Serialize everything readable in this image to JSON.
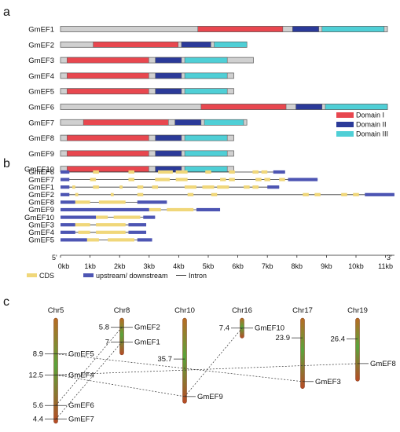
{
  "panels": {
    "a": "a",
    "b": "b",
    "c": "c"
  },
  "colors": {
    "domain_i": "#e8474f",
    "domain_ii": "#2b3a99",
    "domain_iii": "#4fcfd6",
    "protein_body": "#d0d0d0",
    "cds": "#f0d77a",
    "utr": "#4d55b3",
    "intron": "#333333"
  },
  "panel_a": {
    "legend": [
      "Domain I",
      "Domain II",
      "Domain III"
    ],
    "proteins": [
      {
        "name": "GmEF1",
        "length": 1.0,
        "domains": [
          [
            0.42,
            0.68,
            "I"
          ],
          [
            0.71,
            0.79,
            "II"
          ],
          [
            0.8,
            0.99,
            "III"
          ]
        ]
      },
      {
        "name": "GmEF2",
        "length": 0.57,
        "domains": [
          [
            0.1,
            0.36,
            "I"
          ],
          [
            0.37,
            0.46,
            "II"
          ],
          [
            0.47,
            0.57,
            "III"
          ]
        ]
      },
      {
        "name": "GmEF3",
        "length": 0.59,
        "domains": [
          [
            0.02,
            0.27,
            "I"
          ],
          [
            0.29,
            0.37,
            "II"
          ],
          [
            0.38,
            0.51,
            "III"
          ]
        ]
      },
      {
        "name": "GmEF4",
        "length": 0.53,
        "domains": [
          [
            0.02,
            0.27,
            "I"
          ],
          [
            0.29,
            0.37,
            "II"
          ],
          [
            0.38,
            0.51,
            "III"
          ]
        ]
      },
      {
        "name": "GmEF5",
        "length": 0.53,
        "domains": [
          [
            0.02,
            0.27,
            "I"
          ],
          [
            0.29,
            0.37,
            "II"
          ],
          [
            0.38,
            0.51,
            "III"
          ]
        ]
      },
      {
        "name": "GmEF6",
        "length": 1.0,
        "domains": [
          [
            0.43,
            0.69,
            "I"
          ],
          [
            0.72,
            0.8,
            "II"
          ],
          [
            0.81,
            1.0,
            "III"
          ]
        ]
      },
      {
        "name": "GmEF7",
        "length": 0.57,
        "domains": [
          [
            0.07,
            0.33,
            "I"
          ],
          [
            0.35,
            0.43,
            "II"
          ],
          [
            0.44,
            0.56,
            "III"
          ]
        ]
      },
      {
        "name": "GmEF8",
        "length": 0.53,
        "domains": [
          [
            0.02,
            0.27,
            "I"
          ],
          [
            0.29,
            0.37,
            "II"
          ],
          [
            0.38,
            0.51,
            "III"
          ]
        ]
      },
      {
        "name": "GmEF9",
        "length": 0.53,
        "domains": [
          [
            0.02,
            0.27,
            "I"
          ],
          [
            0.29,
            0.37,
            "II"
          ],
          [
            0.38,
            0.51,
            "III"
          ]
        ]
      },
      {
        "name": "GmEF10",
        "length": 0.53,
        "domains": [
          [
            0.02,
            0.27,
            "I"
          ],
          [
            0.29,
            0.37,
            "II"
          ],
          [
            0.38,
            0.51,
            "III"
          ]
        ]
      }
    ]
  },
  "panel_b": {
    "axis_ticks": [
      "0kb",
      "1kb",
      "2kb",
      "3kb",
      "4kb",
      "5kb",
      "6kb",
      "7kb",
      "8kb",
      "9kb",
      "10kb",
      "11kb"
    ],
    "end5": "5'",
    "end3": "3'",
    "legend": {
      "cds": "CDS",
      "utr": "upstream/ downstream",
      "intron": "Intron"
    },
    "genes": [
      {
        "name": "GmEF6",
        "length": 7.6,
        "utr": [
          [
            0,
            0.3
          ],
          [
            7.2,
            7.6
          ]
        ],
        "cds": [
          [
            1.1,
            1.3
          ],
          [
            2.3,
            2.5
          ],
          [
            3.3,
            3.8
          ],
          [
            3.9,
            4.3
          ],
          [
            4.9,
            5.1
          ],
          [
            5.7,
            5.9
          ],
          [
            6.5,
            6.7
          ],
          [
            6.8,
            7.0
          ]
        ]
      },
      {
        "name": "GmEF7",
        "length": 8.7,
        "utr": [
          [
            0,
            0.3
          ],
          [
            7.7,
            8.7
          ]
        ],
        "cds": [
          [
            1.0,
            1.2
          ],
          [
            2.3,
            2.5
          ],
          [
            3.2,
            3.7
          ],
          [
            3.9,
            4.3
          ],
          [
            5.4,
            5.6
          ],
          [
            5.7,
            5.9
          ],
          [
            6.6,
            6.8
          ],
          [
            6.9,
            7.1
          ],
          [
            7.4,
            7.6
          ]
        ]
      },
      {
        "name": "GmEF1",
        "length": 7.4,
        "utr": [
          [
            0,
            0.3
          ],
          [
            7.0,
            7.4
          ]
        ],
        "cds": [
          [
            0.4,
            0.5
          ],
          [
            1.1,
            1.3
          ],
          [
            2.0,
            2.1
          ],
          [
            2.6,
            2.8
          ],
          [
            3.1,
            3.3
          ],
          [
            4.2,
            4.6
          ],
          [
            4.8,
            5.2
          ],
          [
            5.3,
            5.7
          ],
          [
            6.2,
            6.4
          ],
          [
            6.5,
            6.7
          ]
        ]
      },
      {
        "name": "GmEF2",
        "length": 11.3,
        "utr": [
          [
            0,
            0.3
          ],
          [
            10.3,
            11.3
          ]
        ],
        "cds": [
          [
            0.5,
            0.6
          ],
          [
            1.7,
            1.8
          ],
          [
            2.6,
            2.8
          ],
          [
            4.3,
            4.5
          ],
          [
            5.1,
            5.3
          ],
          [
            8.2,
            8.4
          ],
          [
            8.6,
            8.8
          ],
          [
            9.5,
            9.7
          ],
          [
            9.9,
            10.1
          ]
        ]
      },
      {
        "name": "GmEF8",
        "length": 3.6,
        "utr": [
          [
            0,
            0.5
          ],
          [
            2.6,
            3.6
          ]
        ],
        "cds": [
          [
            0.5,
            1.0
          ],
          [
            1.3,
            2.2
          ]
        ]
      },
      {
        "name": "GmEF9",
        "length": 5.4,
        "utr": [
          [
            0,
            3.0
          ],
          [
            4.6,
            5.4
          ]
        ],
        "cds": [
          [
            3.0,
            3.4
          ],
          [
            3.6,
            4.5
          ]
        ]
      },
      {
        "name": "GmEF10",
        "length": 3.2,
        "utr": [
          [
            0,
            1.2
          ],
          [
            2.8,
            3.2
          ]
        ],
        "cds": [
          [
            1.2,
            1.6
          ],
          [
            1.8,
            2.7
          ]
        ]
      },
      {
        "name": "GmEF3",
        "length": 2.9,
        "utr": [
          [
            0,
            0.5
          ],
          [
            2.3,
            2.9
          ]
        ],
        "cds": [
          [
            0.5,
            1.0
          ],
          [
            1.2,
            2.2
          ]
        ]
      },
      {
        "name": "GmEF4",
        "length": 2.9,
        "utr": [
          [
            0,
            0.5
          ],
          [
            2.3,
            2.9
          ]
        ],
        "cds": [
          [
            0.6,
            1.0
          ],
          [
            1.2,
            2.2
          ]
        ]
      },
      {
        "name": "GmEF5",
        "length": 3.1,
        "utr": [
          [
            0,
            0.9
          ],
          [
            2.6,
            3.1
          ]
        ],
        "cds": [
          [
            0.9,
            1.3
          ],
          [
            1.6,
            2.5
          ]
        ]
      }
    ]
  },
  "panel_c": {
    "chromosomes": [
      {
        "name": "Chr5",
        "length": 1.0,
        "positions": [
          {
            "value": "8.9",
            "gene": "GmEF5",
            "frac": 0.34
          },
          {
            "value": "12.5",
            "gene": "GmEF4",
            "frac": 0.54
          },
          {
            "value": "5.6",
            "gene": "GmEF6",
            "frac": 0.83
          },
          {
            "value": "4.4",
            "gene": "GmEF7",
            "frac": 0.96
          }
        ]
      },
      {
        "name": "Chr8",
        "length": 0.35,
        "positions": [
          {
            "value": "5.8",
            "gene": "GmEF2",
            "frac": 0.25
          },
          {
            "value": "7",
            "gene": "GmEF1",
            "frac": 0.65
          }
        ]
      },
      {
        "name": "Chr10",
        "length": 0.81,
        "positions": [
          {
            "value": "35.7",
            "gene": "",
            "frac": 0.48
          },
          {
            "value": "",
            "gene": "GmEF9",
            "frac": 0.92
          }
        ]
      },
      {
        "name": "Chr16",
        "length": 0.19,
        "positions": [
          {
            "value": "7.4",
            "gene": "GmEF10",
            "frac": 0.5
          }
        ]
      },
      {
        "name": "Chr17",
        "length": 0.67,
        "positions": [
          {
            "value": "23.9",
            "gene": "",
            "frac": 0.28
          },
          {
            "value": "",
            "gene": "GmEF3",
            "frac": 0.9
          }
        ]
      },
      {
        "name": "Chr19",
        "length": 0.6,
        "positions": [
          {
            "value": "26.4",
            "gene": "",
            "frac": 0.33
          },
          {
            "value": "",
            "gene": "GmEF8",
            "frac": 0.72
          }
        ]
      }
    ],
    "links": [
      [
        "GmEF5",
        "GmEF3"
      ],
      [
        "GmEF4",
        "GmEF9"
      ],
      [
        "GmEF4",
        "GmEF8"
      ],
      [
        "GmEF6",
        "GmEF2"
      ],
      [
        "GmEF7",
        "GmEF1"
      ],
      [
        "GmEF9",
        "GmEF10"
      ]
    ]
  }
}
